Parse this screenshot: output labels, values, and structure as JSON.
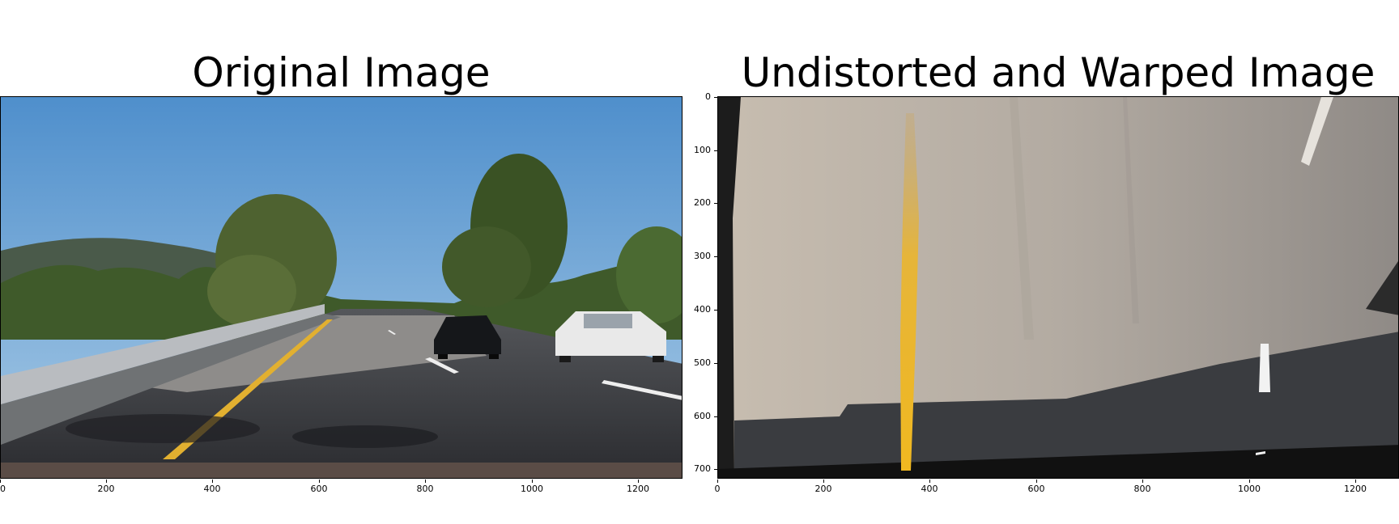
{
  "left_panel": {
    "title": "Original Image",
    "x_ticks": [
      "0",
      "200",
      "400",
      "600",
      "800",
      "1000",
      "1200"
    ]
  },
  "right_panel": {
    "title": "Undistorted and Warped Image",
    "x_ticks": [
      "0",
      "200",
      "400",
      "600",
      "800",
      "1000",
      "1200"
    ],
    "y_ticks": [
      "0",
      "100",
      "200",
      "300",
      "400",
      "500",
      "600",
      "700"
    ]
  },
  "colors": {
    "sky": "#5f9fd4",
    "lane_yellow": "#e8b52a",
    "asphalt": "#2f3136",
    "concrete": "#b8b0a4"
  }
}
